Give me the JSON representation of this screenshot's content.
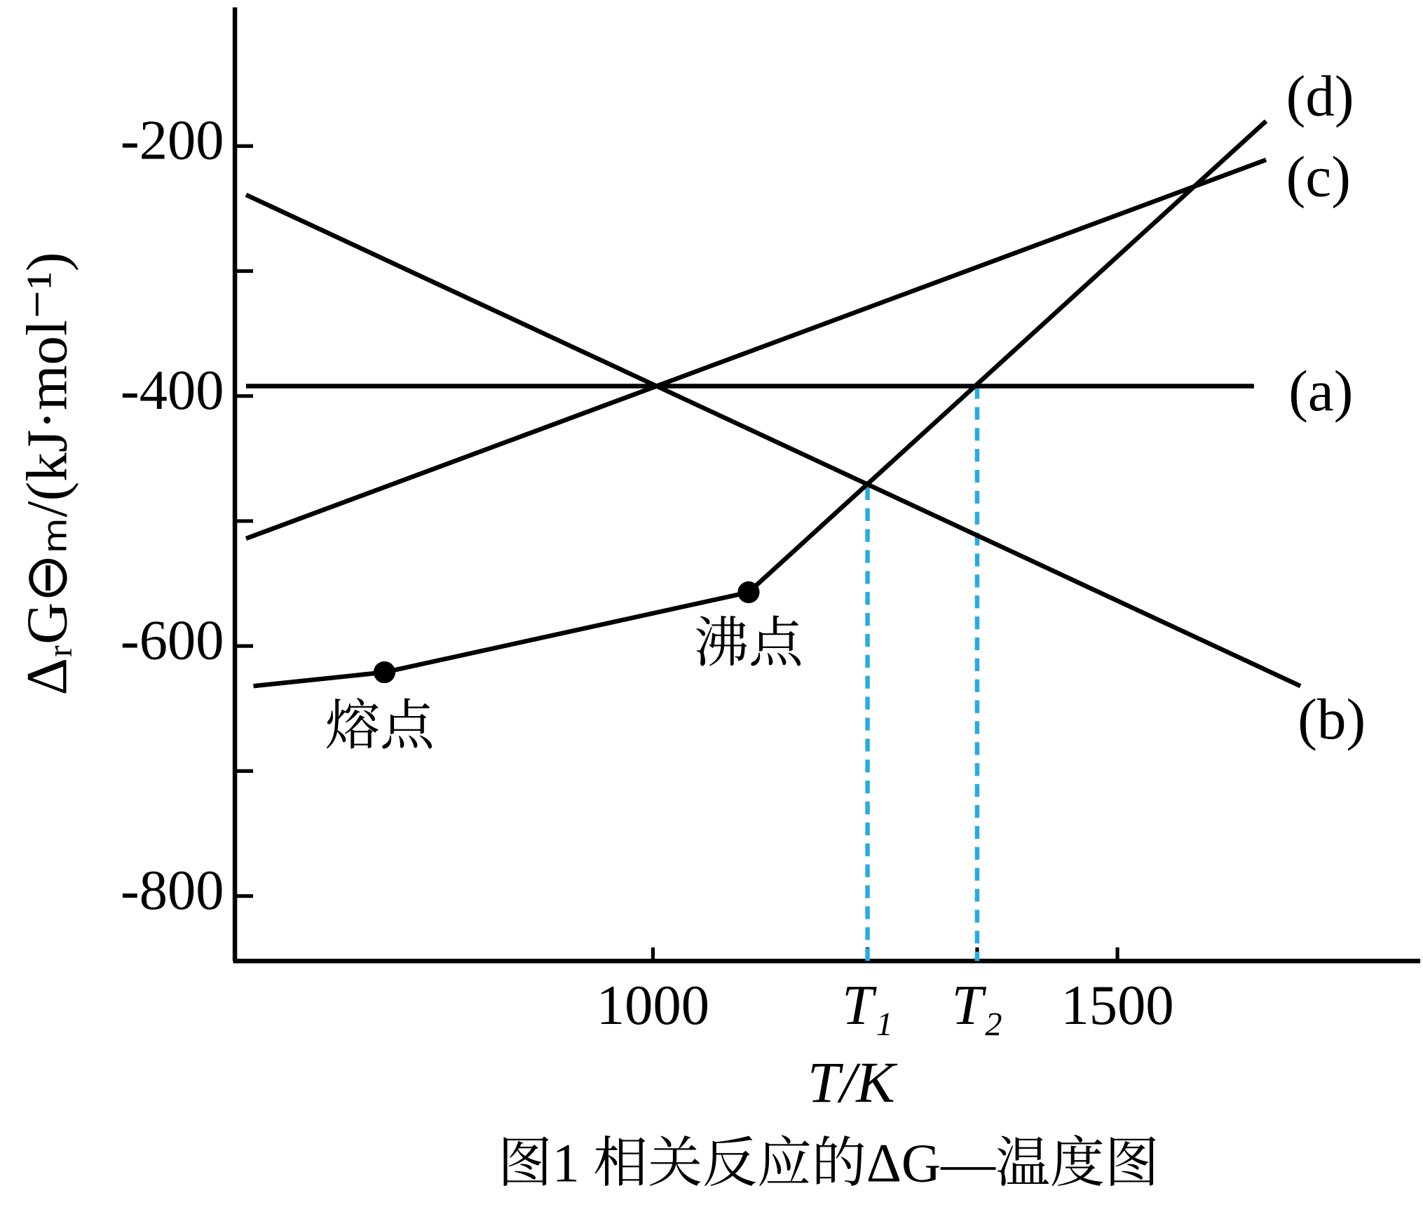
{
  "chart_data": {
    "type": "line",
    "caption": "图1 相关反应的ΔG—温度图",
    "x_label": "T/K",
    "y_label": "ΔᵣG⊖ₘ/(kJ·mol⁻¹)",
    "xlim": [
      550,
      1826
    ],
    "ylim": [
      -852,
      -89
    ],
    "xticks": [
      1000,
      {
        "value": 1231,
        "label": "T₁"
      },
      {
        "value": 1349,
        "label": "T₂"
      },
      1500
    ],
    "yticks": [
      -200,
      -400,
      -600,
      -800
    ],
    "y_minor_ticks": [
      -300,
      -500,
      -700
    ],
    "series": [
      {
        "name": "(a)",
        "color": "#000000",
        "x": [
          562,
          1647
        ],
        "values": [
          -392,
          -392
        ]
      },
      {
        "name": "(b)",
        "color": "#000000",
        "x": [
          562,
          1697
        ],
        "values": [
          -239,
          -632
        ]
      },
      {
        "name": "(c)",
        "color": "#000000",
        "x": [
          562,
          1660
        ],
        "values": [
          -514,
          -211
        ]
      },
      {
        "name": "(d)",
        "color": "#000000",
        "x": [
          570,
          711,
          1103,
          1660
        ],
        "values": [
          -632,
          -621,
          -557,
          -180
        ]
      }
    ],
    "annotations": [
      {
        "text": "熔点",
        "series": 3,
        "point": 1
      },
      {
        "text": "沸点",
        "series": 3,
        "point": 2
      }
    ],
    "guide_lines": {
      "color": "#29abe2",
      "x": [
        1231,
        1349
      ],
      "y": [
        -473,
        -392
      ]
    }
  }
}
